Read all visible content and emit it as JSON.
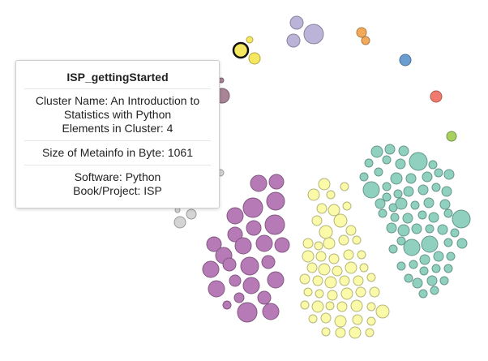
{
  "tooltip": {
    "title": "ISP_gettingStarted",
    "cluster_name_line1": "Cluster Name: An Introduction to",
    "cluster_name_line2": "Statistics with Python",
    "elements": "Elements in Cluster: 4",
    "size": "Size of Metainfo in Byte: 1061",
    "software": "Software: Python",
    "project": "Book/Project: ISP"
  },
  "colors": {
    "purple": "#b67ab6",
    "yellow": "#fafaa8",
    "teal": "#8fd0bf",
    "lavender": "#bcb4d8",
    "orange": "#f3a95a",
    "blue": "#6a9ed0",
    "red": "#f07a6e",
    "green": "#a6d060",
    "gold": "#f5e860",
    "grey": "#d4d4d4",
    "mauve": "#a88496"
  },
  "highlighted_node": "ISP_gettingStarted"
}
